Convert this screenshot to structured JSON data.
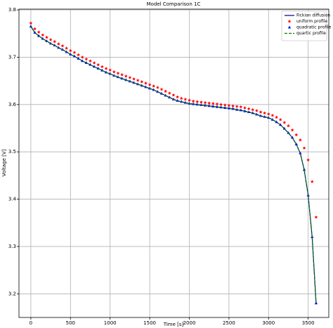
{
  "chart_data": {
    "type": "line",
    "title": "Model Comparison 1C",
    "xlabel": "Time [s]",
    "ylabel": "Voltage [V]",
    "x": [
      0,
      50,
      100,
      150,
      200,
      250,
      300,
      350,
      400,
      450,
      500,
      550,
      600,
      650,
      700,
      750,
      800,
      850,
      900,
      950,
      1000,
      1050,
      1100,
      1150,
      1200,
      1250,
      1300,
      1350,
      1400,
      1450,
      1500,
      1550,
      1600,
      1650,
      1700,
      1750,
      1800,
      1850,
      1900,
      1950,
      2000,
      2050,
      2100,
      2150,
      2200,
      2250,
      2300,
      2350,
      2400,
      2450,
      2500,
      2550,
      2600,
      2650,
      2700,
      2750,
      2800,
      2850,
      2900,
      2950,
      3000,
      3050,
      3100,
      3150,
      3200,
      3250,
      3300,
      3350,
      3400,
      3450,
      3500,
      3550,
      3600
    ],
    "series": [
      {
        "name": "Fickian diffusion",
        "color": "#000080",
        "style": "solid",
        "values": [
          3.765,
          3.752,
          3.745,
          3.739,
          3.734,
          3.729,
          3.725,
          3.72,
          3.716,
          3.711,
          3.706,
          3.702,
          3.697,
          3.692,
          3.688,
          3.684,
          3.68,
          3.676,
          3.672,
          3.668,
          3.665,
          3.661,
          3.658,
          3.655,
          3.652,
          3.649,
          3.646,
          3.643,
          3.64,
          3.637,
          3.634,
          3.631,
          3.627,
          3.623,
          3.619,
          3.615,
          3.611,
          3.608,
          3.606,
          3.604,
          3.602,
          3.601,
          3.6,
          3.599,
          3.598,
          3.597,
          3.596,
          3.595,
          3.594,
          3.593,
          3.592,
          3.591,
          3.589,
          3.588,
          3.586,
          3.584,
          3.582,
          3.579,
          3.576,
          3.574,
          3.572,
          3.568,
          3.563,
          3.557,
          3.549,
          3.54,
          3.53,
          3.516,
          3.497,
          3.462,
          3.408,
          3.32,
          3.18
        ]
      },
      {
        "name": "uniform profile",
        "color": "#ff0000",
        "style": "star",
        "values": [
          3.772,
          3.76,
          3.753,
          3.747,
          3.742,
          3.737,
          3.733,
          3.728,
          3.724,
          3.719,
          3.714,
          3.71,
          3.705,
          3.7,
          3.696,
          3.692,
          3.688,
          3.684,
          3.68,
          3.676,
          3.673,
          3.669,
          3.666,
          3.663,
          3.66,
          3.657,
          3.654,
          3.651,
          3.648,
          3.645,
          3.642,
          3.639,
          3.636,
          3.632,
          3.628,
          3.624,
          3.62,
          3.616,
          3.613,
          3.611,
          3.609,
          3.607,
          3.606,
          3.605,
          3.604,
          3.603,
          3.602,
          3.601,
          3.6,
          3.599,
          3.598,
          3.597,
          3.596,
          3.595,
          3.593,
          3.591,
          3.589,
          3.587,
          3.584,
          3.582,
          3.58,
          3.577,
          3.573,
          3.568,
          3.562,
          3.555,
          3.546,
          3.536,
          3.525,
          3.508,
          3.483,
          3.437,
          3.362
        ]
      },
      {
        "name": "quadratic profile",
        "color": "#0000ff",
        "style": "triangle",
        "values": [
          3.765,
          3.752,
          3.745,
          3.739,
          3.734,
          3.729,
          3.725,
          3.72,
          3.716,
          3.711,
          3.706,
          3.702,
          3.697,
          3.692,
          3.688,
          3.684,
          3.68,
          3.676,
          3.672,
          3.668,
          3.665,
          3.661,
          3.658,
          3.655,
          3.652,
          3.649,
          3.646,
          3.643,
          3.64,
          3.637,
          3.634,
          3.631,
          3.627,
          3.623,
          3.619,
          3.615,
          3.611,
          3.608,
          3.606,
          3.604,
          3.602,
          3.601,
          3.6,
          3.599,
          3.598,
          3.597,
          3.596,
          3.595,
          3.594,
          3.593,
          3.592,
          3.591,
          3.589,
          3.588,
          3.586,
          3.584,
          3.582,
          3.579,
          3.576,
          3.574,
          3.572,
          3.568,
          3.563,
          3.557,
          3.549,
          3.54,
          3.53,
          3.516,
          3.497,
          3.462,
          3.408,
          3.32,
          3.18
        ]
      },
      {
        "name": "quartic profile",
        "color": "#008000",
        "style": "dashed",
        "values": [
          3.765,
          3.752,
          3.745,
          3.739,
          3.734,
          3.729,
          3.725,
          3.72,
          3.716,
          3.711,
          3.706,
          3.702,
          3.697,
          3.692,
          3.688,
          3.684,
          3.68,
          3.676,
          3.672,
          3.668,
          3.665,
          3.661,
          3.658,
          3.655,
          3.652,
          3.649,
          3.646,
          3.643,
          3.64,
          3.637,
          3.634,
          3.631,
          3.627,
          3.623,
          3.619,
          3.615,
          3.611,
          3.608,
          3.606,
          3.604,
          3.602,
          3.601,
          3.6,
          3.599,
          3.598,
          3.597,
          3.596,
          3.595,
          3.594,
          3.593,
          3.592,
          3.591,
          3.589,
          3.588,
          3.586,
          3.584,
          3.582,
          3.579,
          3.576,
          3.574,
          3.572,
          3.568,
          3.563,
          3.557,
          3.549,
          3.54,
          3.53,
          3.516,
          3.497,
          3.462,
          3.408,
          3.32,
          3.18
        ]
      }
    ],
    "xlim": [
      -150,
      3760
    ],
    "xticks": [
      0,
      500,
      1000,
      1500,
      2000,
      2500,
      3000,
      3500
    ],
    "ylim": [
      3.15,
      3.8016
    ],
    "yticks": [
      3.2,
      3.3,
      3.4,
      3.5,
      3.6,
      3.7,
      3.8
    ],
    "grid": true,
    "legend": "upper right"
  }
}
